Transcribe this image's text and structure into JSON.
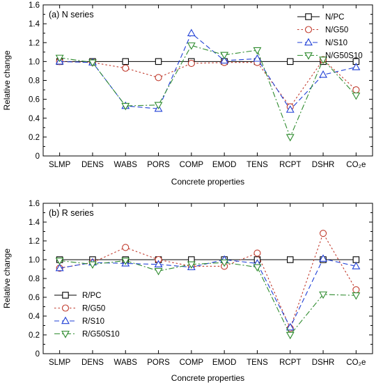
{
  "colors": {
    "pc": "#000000",
    "g50": "#c0392b",
    "s10": "#1f3fd6",
    "g50s10": "#2e8b2e"
  },
  "chart_data": [
    {
      "type": "line",
      "title": "(a) N series",
      "xlabel": "Concrete properties",
      "ylabel": "Relative change",
      "ylim": [
        0,
        1.6
      ],
      "yticks": [
        "0",
        "0.2",
        "0.4",
        "0.6",
        "0.8",
        "1.0",
        "1.2",
        "1.4",
        "1.6"
      ],
      "categories": [
        "SLMP",
        "DENS",
        "WABS",
        "PORS",
        "COMP",
        "EMOD",
        "TENS",
        "RCPT",
        "DSHR",
        "CO₂e"
      ],
      "legend_position": "top-right",
      "series": [
        {
          "name": "N/PC",
          "color": "#000000",
          "dash": "solid",
          "marker": "square",
          "values": [
            1.0,
            1.0,
            1.0,
            1.0,
            1.0,
            1.0,
            1.0,
            1.0,
            1.0,
            1.0
          ]
        },
        {
          "name": "N/G50",
          "color": "#c0392b",
          "dash": "dot",
          "marker": "circle",
          "values": [
            1.0,
            0.99,
            0.93,
            0.83,
            0.98,
            0.99,
            0.99,
            0.52,
            1.02,
            0.7
          ]
        },
        {
          "name": "N/S10",
          "color": "#1f3fd6",
          "dash": "dash",
          "marker": "triangle-up",
          "values": [
            1.0,
            0.99,
            0.53,
            0.5,
            1.3,
            1.01,
            1.03,
            0.49,
            0.86,
            0.94
          ]
        },
        {
          "name": "N/G50S10",
          "color": "#2e8b2e",
          "dash": "dashdot",
          "marker": "triangle-down",
          "values": [
            1.04,
            0.99,
            0.53,
            0.54,
            1.17,
            1.07,
            1.12,
            0.2,
            1.02,
            0.64
          ]
        }
      ]
    },
    {
      "type": "line",
      "title": "(b) R series",
      "xlabel": "Concrete properties",
      "ylabel": "Relative change",
      "ylim": [
        0,
        1.6
      ],
      "yticks": [
        "0",
        "0.2",
        "0.4",
        "0.6",
        "0.8",
        "1.0",
        "1.2",
        "1.4",
        "1.6"
      ],
      "categories": [
        "SLMP",
        "DENS",
        "WABS",
        "PORS",
        "COMP",
        "EMOD",
        "TENS",
        "RCPT",
        "DSHR",
        "CO₂e"
      ],
      "legend_position": "bottom-left",
      "series": [
        {
          "name": "R/PC",
          "color": "#000000",
          "dash": "solid",
          "marker": "square",
          "values": [
            1.0,
            1.0,
            1.0,
            1.0,
            1.0,
            1.0,
            1.0,
            1.0,
            1.0,
            1.0
          ]
        },
        {
          "name": "R/G50",
          "color": "#c0392b",
          "dash": "dot",
          "marker": "circle",
          "values": [
            0.91,
            0.97,
            1.13,
            1.0,
            0.93,
            0.93,
            1.07,
            0.27,
            1.28,
            0.68
          ]
        },
        {
          "name": "R/S10",
          "color": "#1f3fd6",
          "dash": "dash",
          "marker": "triangle-up",
          "values": [
            0.91,
            0.97,
            0.96,
            0.95,
            0.92,
            1.0,
            0.96,
            0.28,
            1.01,
            0.93
          ]
        },
        {
          "name": "R/G50S10",
          "color": "#2e8b2e",
          "dash": "dashdot",
          "marker": "triangle-down",
          "values": [
            0.99,
            0.95,
            0.99,
            0.88,
            0.95,
            0.97,
            0.92,
            0.2,
            0.63,
            0.62
          ]
        }
      ]
    }
  ]
}
